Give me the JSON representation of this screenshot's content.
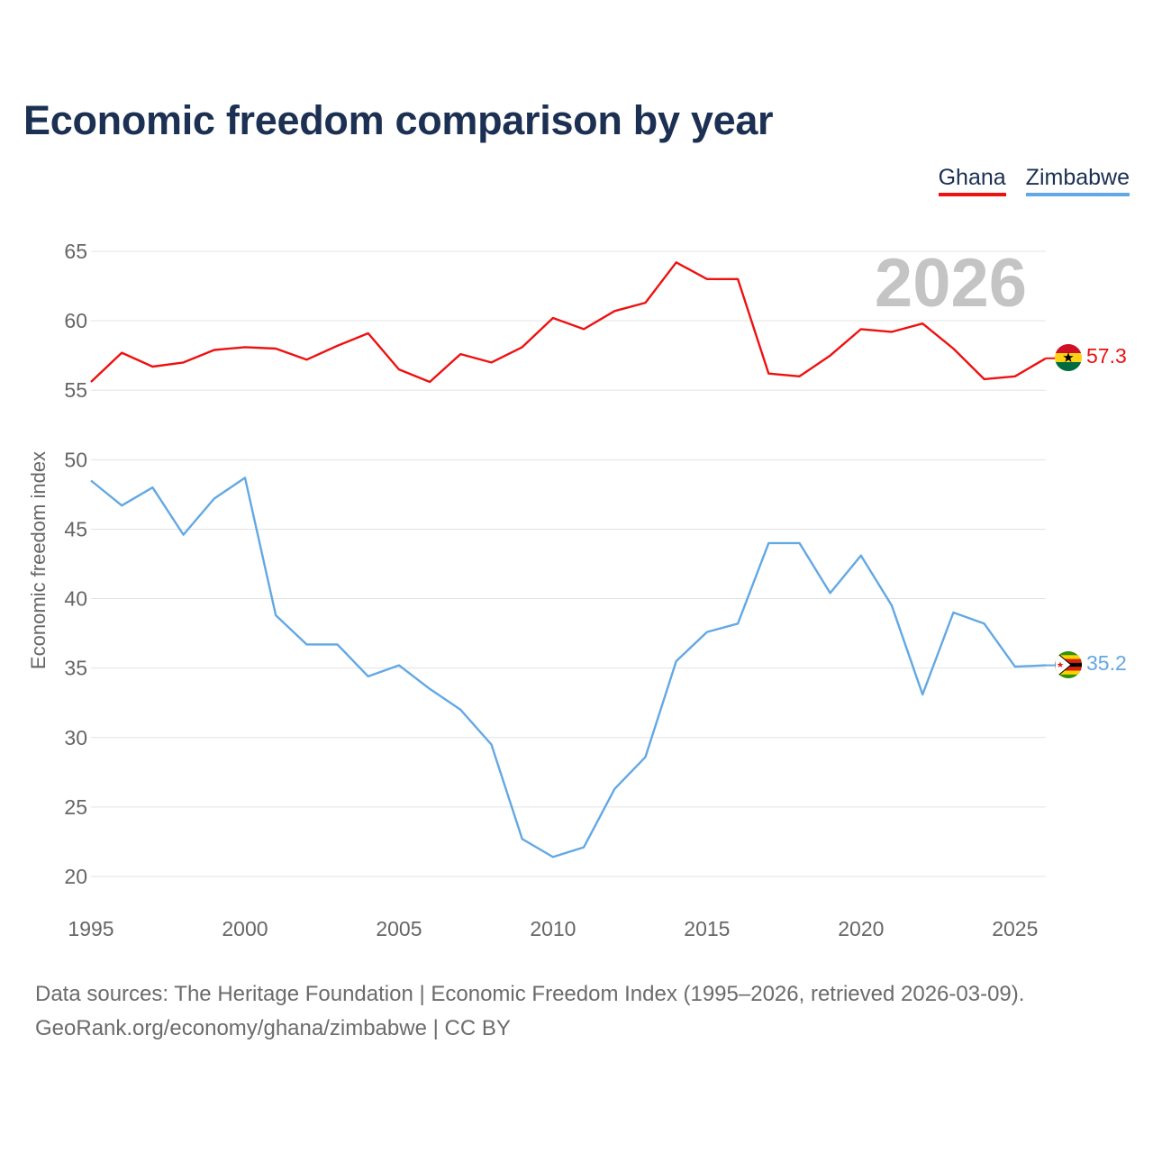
{
  "title": "Economic freedom comparison by year",
  "legend": [
    {
      "label": "Ghana",
      "color": "#ee1111"
    },
    {
      "label": "Zimbabwe",
      "color": "#62a8e5"
    }
  ],
  "watermark_year": "2026",
  "footer": {
    "line1": "Data sources: The Heritage Foundation | Economic Freedom Index (1995–2026, retrieved 2026-03-09).",
    "line2": "GeoRank.org/economy/ghana/zimbabwe | CC BY"
  },
  "chart_data": {
    "type": "line",
    "title": "Economic freedom comparison by year",
    "xlabel": "",
    "ylabel": "Economic freedom index",
    "xlim": [
      1995,
      2026
    ],
    "ylim": [
      20,
      65
    ],
    "x_ticks": [
      1995,
      2000,
      2005,
      2010,
      2015,
      2020,
      2025
    ],
    "y_ticks": [
      20,
      25,
      30,
      35,
      40,
      45,
      50,
      55,
      60,
      65
    ],
    "grid": true,
    "legend_position": "top-right",
    "x": [
      1995,
      1996,
      1997,
      1998,
      1999,
      2000,
      2001,
      2002,
      2003,
      2004,
      2005,
      2006,
      2007,
      2008,
      2009,
      2010,
      2011,
      2012,
      2013,
      2014,
      2015,
      2016,
      2017,
      2018,
      2019,
      2020,
      2021,
      2022,
      2023,
      2024,
      2025,
      2026
    ],
    "series": [
      {
        "name": "Ghana",
        "color": "#ee1111",
        "flag": "ghana-flag-icon",
        "end_label": "57.3",
        "values": [
          55.6,
          57.7,
          56.7,
          57.0,
          57.9,
          58.1,
          58.0,
          57.2,
          58.2,
          59.1,
          56.5,
          55.6,
          57.6,
          57.0,
          58.1,
          60.2,
          59.4,
          60.7,
          61.3,
          64.2,
          63.0,
          63.0,
          56.2,
          56.0,
          57.5,
          59.4,
          59.2,
          59.8,
          58.0,
          55.8,
          56.0,
          57.3
        ]
      },
      {
        "name": "Zimbabwe",
        "color": "#62a8e5",
        "flag": "zimbabwe-flag-icon",
        "end_label": "35.2",
        "values": [
          48.5,
          46.7,
          48.0,
          44.6,
          47.2,
          48.7,
          38.8,
          36.7,
          36.7,
          34.4,
          35.2,
          33.5,
          32.0,
          29.5,
          22.7,
          21.4,
          22.1,
          26.3,
          28.6,
          35.5,
          37.6,
          38.2,
          44.0,
          44.0,
          40.4,
          43.1,
          39.5,
          33.1,
          39.0,
          38.2,
          35.1,
          35.2
        ]
      }
    ]
  }
}
